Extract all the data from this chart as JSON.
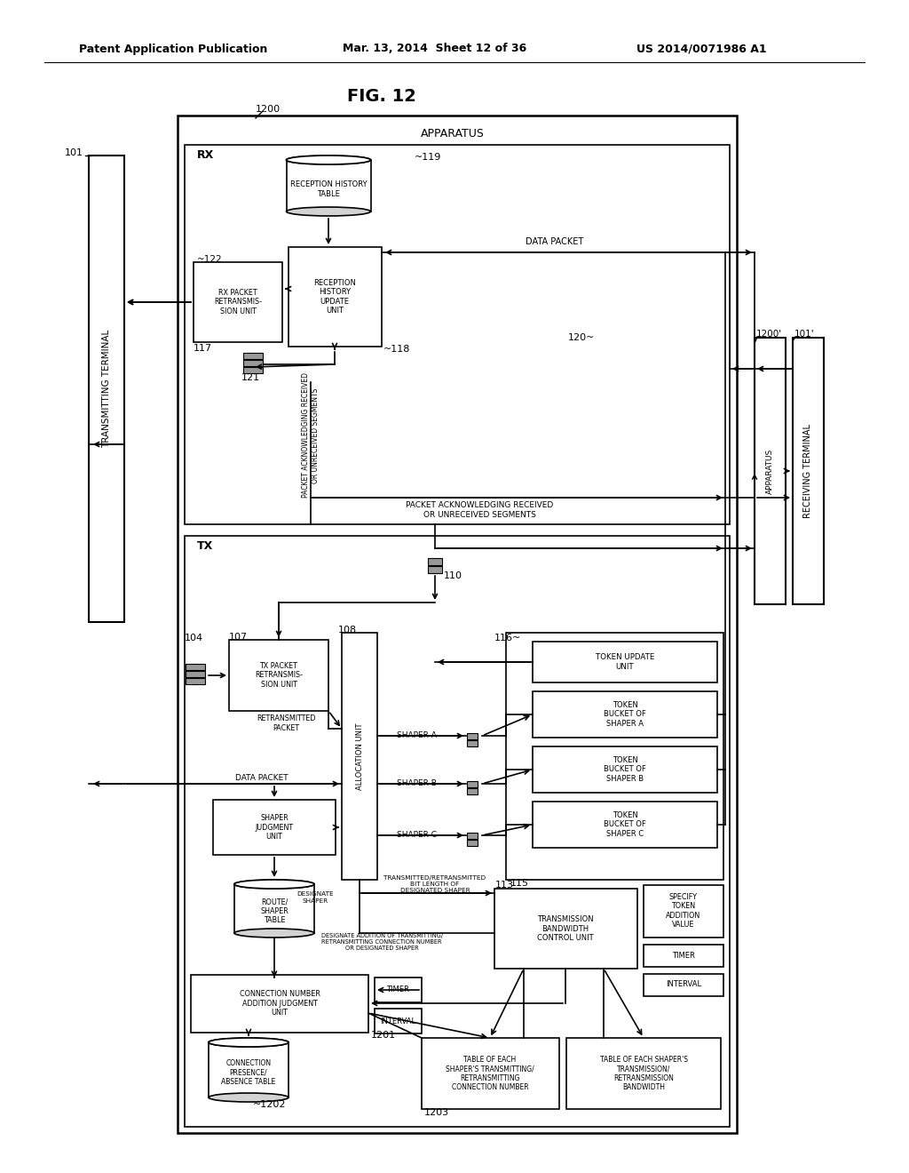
{
  "title": "FIG. 12",
  "header_left": "Patent Application Publication",
  "header_center": "Mar. 13, 2014  Sheet 12 of 36",
  "header_right": "US 2014/0071986 A1",
  "bg_color": "#ffffff"
}
